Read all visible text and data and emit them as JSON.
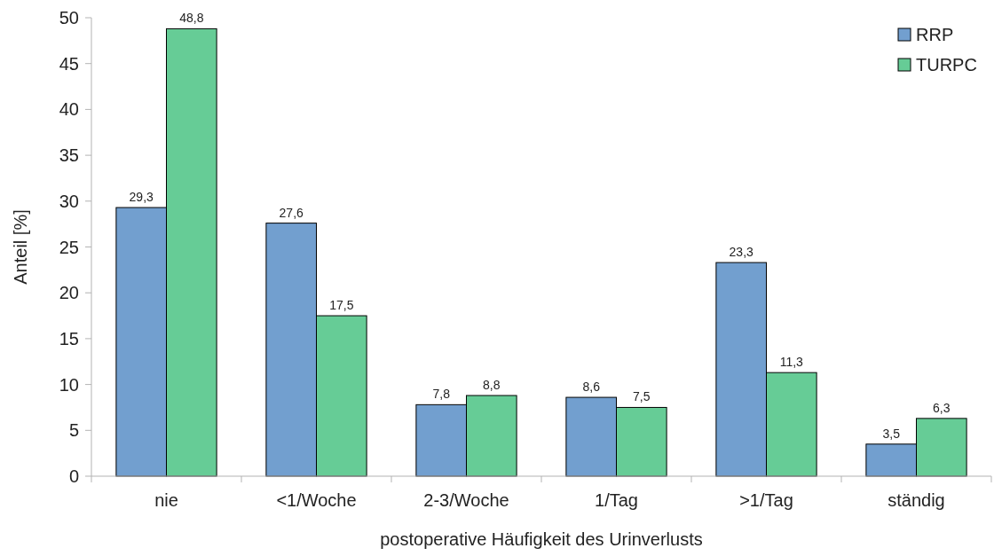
{
  "chart_data": {
    "type": "bar",
    "xlabel": "postoperative Häufigkeit des Urinverlusts",
    "ylabel": "Anteil [%]",
    "categories": [
      "nie",
      "<1/Woche",
      "2-3/Woche",
      "1/Tag",
      ">1/Tag",
      "ständig"
    ],
    "series": [
      {
        "name": "RRP",
        "color": "#729fcf",
        "values": [
          29.3,
          27.6,
          7.8,
          8.6,
          23.3,
          3.5
        ],
        "value_labels": [
          "29,3",
          "27,6",
          "7,8",
          "8,6",
          "23,3",
          "3,5"
        ]
      },
      {
        "name": "TURPC",
        "color": "#66cc96",
        "values": [
          48.8,
          17.5,
          8.8,
          7.5,
          11.3,
          6.3
        ],
        "value_labels": [
          "48,8",
          "17,5",
          "8,8",
          "7,5",
          "11,3",
          "6,3"
        ]
      }
    ],
    "ylim": [
      0,
      50
    ],
    "yticks": [
      0,
      5,
      10,
      15,
      20,
      25,
      30,
      35,
      40,
      45,
      50
    ],
    "grid": false,
    "legend": "top right"
  }
}
